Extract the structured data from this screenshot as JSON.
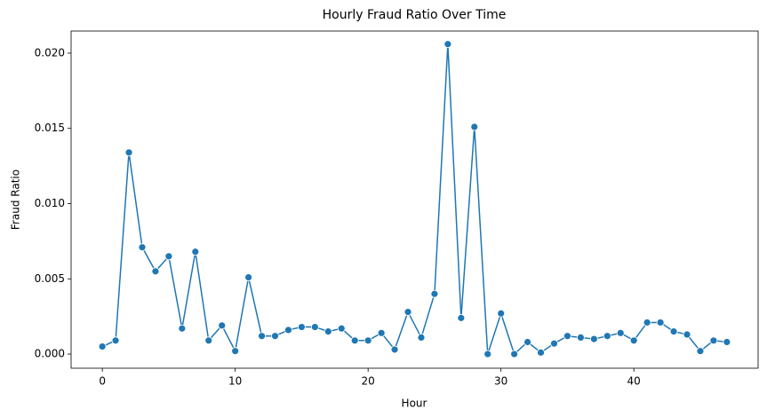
{
  "chart_data": {
    "type": "line",
    "title": "Hourly Fraud Ratio Over Time",
    "x_label": "Hour",
    "y_label": "Fraud Ratio",
    "x": [
      0,
      1,
      2,
      3,
      4,
      5,
      6,
      7,
      8,
      9,
      10,
      11,
      12,
      13,
      14,
      15,
      16,
      17,
      18,
      19,
      20,
      21,
      22,
      23,
      24,
      25,
      26,
      27,
      28,
      29,
      30,
      31,
      32,
      33,
      34,
      35,
      36,
      37,
      38,
      39,
      40,
      41,
      42,
      43,
      44,
      45,
      46,
      47
    ],
    "series": [
      {
        "color": "#1f77b4",
        "values": [
          0.0005,
          0.0009,
          0.0134,
          0.0071,
          0.0055,
          0.0065,
          0.0017,
          0.0068,
          0.0009,
          0.0019,
          0.0002,
          0.0051,
          0.0012,
          0.0012,
          0.0016,
          0.0018,
          0.0018,
          0.0015,
          0.0017,
          0.0009,
          0.0009,
          0.0014,
          0.0003,
          0.0028,
          0.0011,
          0.004,
          0.0206,
          0.0024,
          0.0151,
          0.0,
          0.0027,
          0.0,
          0.0008,
          0.0001,
          0.0007,
          0.0012,
          0.0011,
          0.001,
          0.0012,
          0.0014,
          0.0009,
          0.0021,
          0.0021,
          0.0015,
          0.0013,
          0.0002,
          0.0009,
          0.0008
        ]
      }
    ],
    "xlim": [
      -2.35,
      49.35
    ],
    "ylim": [
      -0.00094,
      0.02147
    ],
    "xticks": [
      0,
      10,
      20,
      30,
      40
    ],
    "yticks": [
      {
        "value": 0,
        "label": "0.000"
      },
      0.005,
      {
        "value": 0.01,
        "label": "0.010"
      },
      0.015,
      {
        "value": 0.02,
        "label": "0.020"
      }
    ],
    "grid": false
  }
}
